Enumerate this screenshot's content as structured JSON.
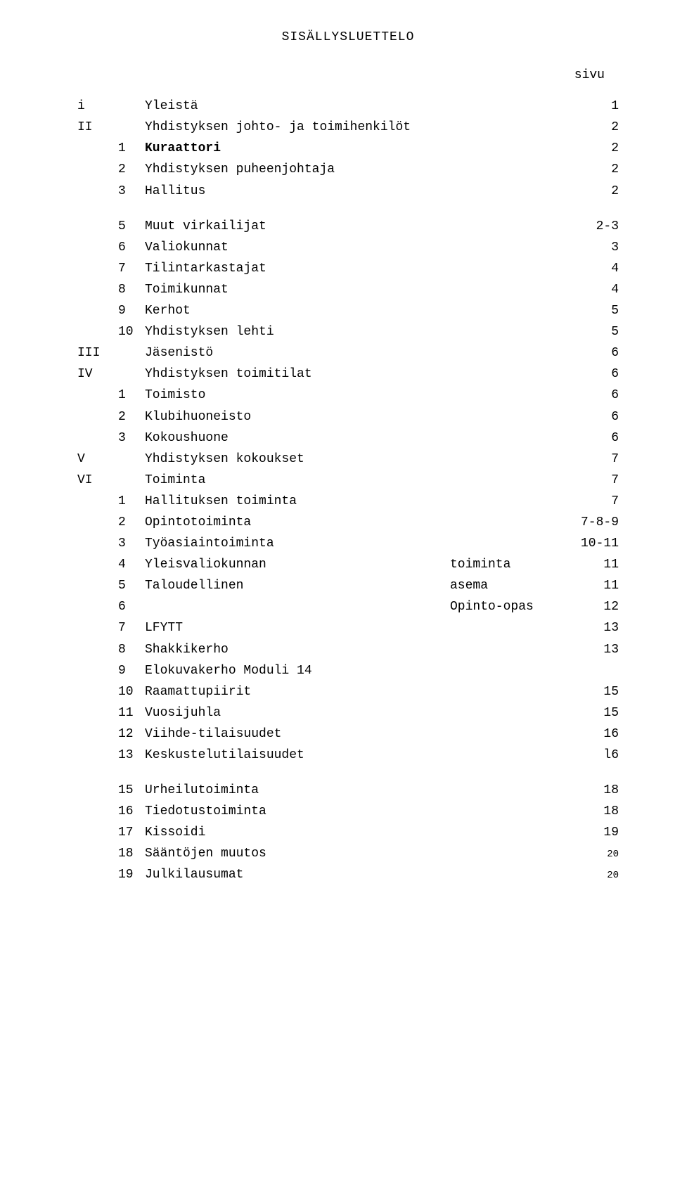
{
  "title": "SISÄLLYSLUETTELO",
  "page_label": "sivu",
  "rows": [
    {
      "roman": "i",
      "num": "",
      "label": "Yleistä",
      "mid": "",
      "page": "1",
      "bold": false
    },
    {
      "roman": "II",
      "num": "",
      "label": "Yhdistyksen johto- ja toimihenkilöt",
      "mid": "",
      "page": "2",
      "bold": false
    },
    {
      "roman": "",
      "num": "1",
      "label": "Kuraattori",
      "mid": "",
      "page": "2",
      "bold": true
    },
    {
      "roman": "",
      "num": "2",
      "label": "Yhdistyksen puheenjohtaja",
      "mid": "",
      "page": "2",
      "bold": false
    },
    {
      "roman": "",
      "num": "3",
      "label": "Hallitus",
      "mid": "",
      "page": "2",
      "bold": false
    },
    {
      "gap": true
    },
    {
      "roman": "",
      "num": "5",
      "label": "Muut virkailijat",
      "mid": "",
      "page": "2-3",
      "bold": false
    },
    {
      "roman": "",
      "num": "6",
      "label": "Valiokunnat",
      "mid": "",
      "page": "3",
      "bold": false
    },
    {
      "roman": "",
      "num": "7",
      "label": "Tilintarkastajat",
      "mid": "",
      "page": "4",
      "bold": false
    },
    {
      "roman": "",
      "num": "8",
      "label": "Toimikunnat",
      "mid": "",
      "page": "4",
      "bold": false
    },
    {
      "roman": "",
      "num": "9",
      "label": "Kerhot",
      "mid": "",
      "page": "5",
      "bold": false
    },
    {
      "roman": "",
      "num": "10",
      "label": "Yhdistyksen lehti",
      "mid": "",
      "page": "5",
      "bold": false
    },
    {
      "roman": "III",
      "num": "",
      "label": "Jäsenistö",
      "mid": "",
      "page": "6",
      "bold": false
    },
    {
      "roman": "IV",
      "num": "",
      "label": "Yhdistyksen toimitilat",
      "mid": "",
      "page": "6",
      "bold": false
    },
    {
      "roman": "",
      "num": "1",
      "label": "Toimisto",
      "mid": "",
      "page": "6",
      "bold": false
    },
    {
      "roman": "",
      "num": "2",
      "label": "Klubihuoneisto",
      "mid": "",
      "page": "6",
      "bold": false
    },
    {
      "roman": "",
      "num": "3",
      "label": "Kokoushuone",
      "mid": "",
      "page": "6",
      "bold": false
    },
    {
      "roman": "V",
      "num": "",
      "label": "Yhdistyksen kokoukset",
      "mid": "",
      "page": "7",
      "bold": false
    },
    {
      "roman": "VI",
      "num": "",
      "label": "Toiminta",
      "mid": "",
      "page": "7",
      "bold": false
    },
    {
      "roman": "",
      "num": "1",
      "label": "Hallituksen toiminta",
      "mid": "",
      "page": "7",
      "bold": false
    },
    {
      "roman": "",
      "num": "2",
      "label": "Opintotoiminta",
      "mid": "",
      "page": "7-8-9",
      "bold": false
    },
    {
      "roman": "",
      "num": "3",
      "label": "Työasiaintoiminta",
      "mid": "",
      "page": "10-11",
      "bold": false
    },
    {
      "roman": "",
      "num": "4",
      "label": "Yleisvaliokunnan",
      "mid": "toiminta",
      "page": "11",
      "bold": false
    },
    {
      "roman": "",
      "num": "5",
      "label": "Taloudellinen",
      "mid": "asema",
      "page": "11",
      "bold": false
    },
    {
      "roman": "",
      "num": "6",
      "label": "",
      "mid": "Opinto-opas",
      "page": "12",
      "bold": false,
      "mid_center": true
    },
    {
      "roman": "",
      "num": "7",
      "label": "LFYTT",
      "mid": "",
      "page": "13",
      "bold": false
    },
    {
      "roman": "",
      "num": "8",
      "label": "Shakkikerho",
      "mid": "",
      "page": "13",
      "bold": false
    },
    {
      "roman": "",
      "num": "9",
      "label": "Elokuvakerho Moduli 14",
      "mid": "",
      "page": "",
      "bold": false
    },
    {
      "roman": "",
      "num": "10",
      "label": "Raamattupiirit",
      "mid": "",
      "page": "15",
      "bold": false
    },
    {
      "roman": "",
      "num": "11",
      "label": "Vuosijuhla",
      "mid": "",
      "page": "15",
      "bold": false
    },
    {
      "roman": "",
      "num": "12",
      "label": "Viihde-tilaisuudet",
      "mid": "",
      "page": "16",
      "bold": false
    },
    {
      "roman": "",
      "num": "13",
      "label": "Keskustelutilaisuudet",
      "mid": "",
      "page": "l6",
      "bold": false
    },
    {
      "gap": true
    },
    {
      "roman": "",
      "num": "15",
      "label": "Urheilutoiminta",
      "mid": "",
      "page": "18",
      "bold": false
    },
    {
      "roman": "",
      "num": "16",
      "label": "Tiedotustoiminta",
      "mid": "",
      "page": "18",
      "bold": false
    },
    {
      "roman": "",
      "num": "17",
      "label": "Kissoidi",
      "mid": "",
      "page": "19",
      "bold": false
    },
    {
      "roman": "",
      "num": "18",
      "label": "Sääntöjen muutos",
      "mid": "",
      "page": "20",
      "bold": false,
      "page_small": true
    },
    {
      "roman": "",
      "num": "19",
      "label": "Julkilausumat",
      "mid": "",
      "page": "20",
      "bold": false,
      "page_small": true
    }
  ]
}
